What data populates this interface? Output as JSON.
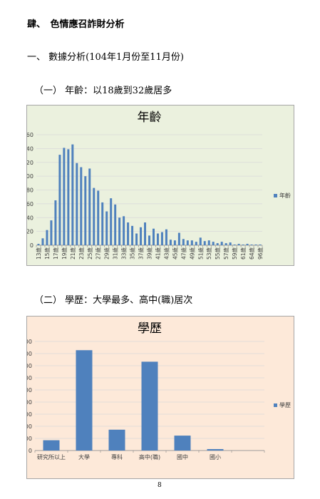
{
  "document": {
    "chapter": "肆、　色情應召詐財分析",
    "section": "一、 數據分析(104年1月份至11月份)",
    "subsection_age": "（一） 年齡：以18歲到32歲居多",
    "subsection_education": "（二） 學歷：大學最多、高中(職)居次",
    "page_number": "8"
  },
  "chart_data": [
    {
      "type": "bar",
      "title": "年齡",
      "categories": [
        "13歲",
        null,
        "15歲",
        null,
        "17歲",
        null,
        "19歲",
        null,
        "21歲",
        null,
        "23歲",
        null,
        "25歲",
        null,
        "27歲",
        null,
        "29歲",
        null,
        "31歲",
        null,
        "33歲",
        null,
        "35歲",
        null,
        "37歲",
        null,
        "39歲",
        null,
        "41歲",
        null,
        "43歲",
        null,
        "45歲",
        null,
        "47歲",
        null,
        "49歲",
        null,
        "51歲",
        null,
        "53歲",
        null,
        "55歲",
        null,
        "57歲",
        null,
        "59歲",
        null,
        "61歲",
        null,
        "64歲",
        null,
        "96歲"
      ],
      "series": [
        {
          "name": "年齡",
          "color": "#4f81bd",
          "values": [
            2,
            10,
            22,
            36,
            65,
            131,
            141,
            139,
            146,
            119,
            113,
            100,
            111,
            83,
            79,
            62,
            49,
            68,
            59,
            40,
            42,
            33,
            28,
            17,
            26,
            33,
            14,
            24,
            17,
            19,
            23,
            8,
            7,
            18,
            9,
            7,
            7,
            5,
            11,
            6,
            7,
            5,
            3,
            5,
            3,
            4,
            1,
            2,
            1,
            2,
            1,
            1,
            1
          ]
        }
      ],
      "ylim": [
        0,
        160
      ],
      "yticks": [
        0,
        20,
        40,
        60,
        80,
        100,
        120,
        140,
        160
      ],
      "grid": true,
      "legend": "right"
    },
    {
      "type": "bar",
      "title": "學歷",
      "categories": [
        "研究所以上",
        "大學",
        "專科",
        "高中(職)",
        "國中",
        "國小",
        null
      ],
      "series": [
        {
          "name": "學歷",
          "color": "#4f81bd",
          "values": [
            85,
            828,
            172,
            733,
            123,
            12,
            null
          ]
        }
      ],
      "ylim": [
        0,
        900
      ],
      "yticks": [
        0,
        100,
        200,
        300,
        400,
        500,
        600,
        700,
        800,
        900
      ],
      "grid": true,
      "legend": "right"
    }
  ]
}
